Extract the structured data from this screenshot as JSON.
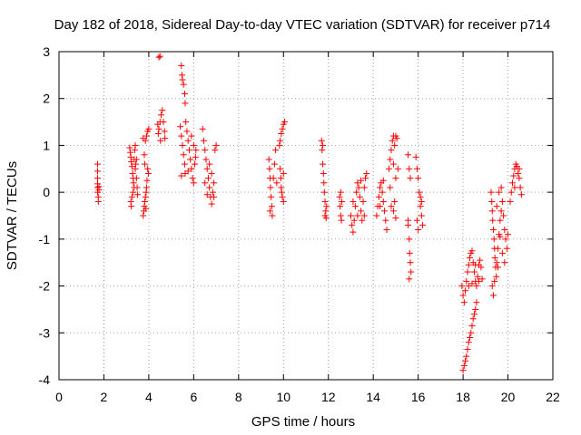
{
  "chart_data": {
    "type": "scatter",
    "title": "Day 182 of 2018, Sidereal Day-to-day VTEC variation (SDTVAR) for receiver p714",
    "xlabel": "GPS time / hours",
    "ylabel": "SDTVAR / TECUs",
    "xlim": [
      0,
      22
    ],
    "ylim": [
      -4,
      3
    ],
    "xticks": [
      "0",
      "2",
      "4",
      "6",
      "8",
      "10",
      "12",
      "14",
      "16",
      "18",
      "20",
      "22"
    ],
    "yticks": [
      "-4",
      "-3",
      "-2",
      "-1",
      "0",
      "1",
      "2",
      "3"
    ],
    "grid": true,
    "marker": "+",
    "color": "#ff0000",
    "series": [
      {
        "name": "SDTVAR",
        "points": [
          [
            1.72,
            0.6
          ],
          [
            1.72,
            0.45
          ],
          [
            1.72,
            0.3
          ],
          [
            1.72,
            0.18
          ],
          [
            1.72,
            0.1
          ],
          [
            1.72,
            0.0
          ],
          [
            1.75,
            -0.1
          ],
          [
            1.75,
            -0.2
          ],
          [
            1.78,
            0.12
          ],
          [
            1.78,
            0.05
          ],
          [
            3.15,
            0.95
          ],
          [
            3.18,
            0.85
          ],
          [
            3.2,
            0.75
          ],
          [
            3.22,
            0.65
          ],
          [
            3.25,
            0.55
          ],
          [
            3.28,
            0.4
          ],
          [
            3.3,
            0.3
          ],
          [
            3.32,
            0.2
          ],
          [
            3.35,
            0.7
          ],
          [
            3.38,
            0.9
          ],
          [
            3.4,
            1.0
          ],
          [
            3.42,
            0.6
          ],
          [
            3.45,
            0.3
          ],
          [
            3.48,
            0.1
          ],
          [
            3.5,
            -0.05
          ],
          [
            3.2,
            -0.2
          ],
          [
            3.22,
            -0.3
          ],
          [
            3.25,
            -0.1
          ],
          [
            3.3,
            0.0
          ],
          [
            3.35,
            0.1
          ],
          [
            3.4,
            0.5
          ],
          [
            3.45,
            0.7
          ],
          [
            3.75,
            -0.5
          ],
          [
            3.78,
            -0.4
          ],
          [
            3.8,
            -0.3
          ],
          [
            3.82,
            -0.2
          ],
          [
            3.85,
            -0.1
          ],
          [
            3.88,
            0.0
          ],
          [
            3.9,
            0.1
          ],
          [
            3.92,
            0.25
          ],
          [
            3.95,
            0.5
          ],
          [
            3.98,
            0.4
          ],
          [
            3.8,
            0.8
          ],
          [
            3.85,
            1.1
          ],
          [
            3.9,
            1.2
          ],
          [
            3.95,
            1.3
          ],
          [
            4.0,
            1.35
          ],
          [
            3.75,
            1.15
          ],
          [
            3.82,
            0.6
          ],
          [
            3.87,
            -0.35
          ],
          [
            4.45,
            2.88
          ],
          [
            4.5,
            2.9
          ],
          [
            4.42,
            1.25
          ],
          [
            4.45,
            1.35
          ],
          [
            4.5,
            1.5
          ],
          [
            4.55,
            1.65
          ],
          [
            4.6,
            1.75
          ],
          [
            4.65,
            1.5
          ],
          [
            4.7,
            1.3
          ],
          [
            4.72,
            1.15
          ],
          [
            4.4,
            1.45
          ],
          [
            4.52,
            1.1
          ],
          [
            5.45,
            2.7
          ],
          [
            5.48,
            2.5
          ],
          [
            5.5,
            2.4
          ],
          [
            5.55,
            2.3
          ],
          [
            5.6,
            2.1
          ],
          [
            5.62,
            1.9
          ],
          [
            5.4,
            1.4
          ],
          [
            5.45,
            1.2
          ],
          [
            5.5,
            1.0
          ],
          [
            5.55,
            0.8
          ],
          [
            5.6,
            0.6
          ],
          [
            5.62,
            0.4
          ],
          [
            5.65,
            1.5
          ],
          [
            5.7,
            1.3
          ],
          [
            5.75,
            1.1
          ],
          [
            5.8,
            0.9
          ],
          [
            5.85,
            0.7
          ],
          [
            5.9,
            0.5
          ],
          [
            5.95,
            0.3
          ],
          [
            6.0,
            0.2
          ],
          [
            6.05,
            0.6
          ],
          [
            6.1,
            0.9
          ],
          [
            5.45,
            0.35
          ],
          [
            5.9,
            1.2
          ],
          [
            6.0,
            1.0
          ],
          [
            5.75,
            0.45
          ],
          [
            6.08,
            0.75
          ],
          [
            6.4,
            1.35
          ],
          [
            6.45,
            1.1
          ],
          [
            6.5,
            0.9
          ],
          [
            6.55,
            0.7
          ],
          [
            6.6,
            0.5
          ],
          [
            6.65,
            0.3
          ],
          [
            6.7,
            0.1
          ],
          [
            6.75,
            -0.1
          ],
          [
            6.8,
            -0.25
          ],
          [
            6.85,
            0.0
          ],
          [
            6.9,
            0.2
          ],
          [
            6.95,
            0.9
          ],
          [
            7.0,
            1.0
          ],
          [
            6.5,
            0.2
          ],
          [
            6.6,
            -0.05
          ],
          [
            6.7,
            0.6
          ],
          [
            6.8,
            0.4
          ],
          [
            6.9,
            -0.1
          ],
          [
            9.35,
            0.7
          ],
          [
            9.38,
            0.5
          ],
          [
            9.4,
            0.3
          ],
          [
            9.42,
            0.1
          ],
          [
            9.45,
            -0.1
          ],
          [
            9.48,
            -0.3
          ],
          [
            9.5,
            -0.5
          ],
          [
            9.55,
            0.3
          ],
          [
            9.6,
            0.6
          ],
          [
            9.65,
            0.9
          ],
          [
            9.7,
            0.2
          ],
          [
            9.4,
            -0.4
          ],
          [
            9.85,
            0.5
          ],
          [
            9.88,
            0.3
          ],
          [
            9.9,
            0.1
          ],
          [
            9.95,
            -0.1
          ],
          [
            10.0,
            -0.2
          ],
          [
            9.92,
            0.0
          ],
          [
            9.85,
            1.1
          ],
          [
            9.9,
            1.25
          ],
          [
            9.95,
            1.35
          ],
          [
            10.0,
            1.45
          ],
          [
            10.05,
            1.5
          ],
          [
            9.82,
            1.0
          ],
          [
            10.0,
            0.4
          ],
          [
            11.7,
            1.1
          ],
          [
            11.72,
            0.9
          ],
          [
            11.75,
            0.6
          ],
          [
            11.78,
            0.4
          ],
          [
            11.8,
            0.2
          ],
          [
            11.82,
            0.0
          ],
          [
            11.85,
            -0.2
          ],
          [
            11.88,
            -0.4
          ],
          [
            11.9,
            -0.55
          ],
          [
            11.92,
            -0.3
          ],
          [
            11.75,
            1.0
          ],
          [
            11.85,
            -0.5
          ],
          [
            12.5,
            -0.1
          ],
          [
            12.52,
            -0.3
          ],
          [
            12.55,
            -0.5
          ],
          [
            12.58,
            -0.6
          ],
          [
            12.6,
            -0.2
          ],
          [
            12.55,
            0.0
          ],
          [
            13.0,
            -0.5
          ],
          [
            13.05,
            -0.7
          ],
          [
            13.1,
            -0.85
          ],
          [
            13.15,
            -0.6
          ],
          [
            13.2,
            -0.3
          ],
          [
            13.25,
            0.0
          ],
          [
            13.3,
            0.2
          ],
          [
            13.35,
            0.1
          ],
          [
            13.4,
            -0.1
          ],
          [
            13.45,
            -0.4
          ],
          [
            13.5,
            -0.6
          ],
          [
            13.55,
            -0.2
          ],
          [
            13.6,
            0.1
          ],
          [
            13.65,
            0.3
          ],
          [
            13.7,
            0.4
          ],
          [
            13.3,
            -0.5
          ],
          [
            13.45,
            0.25
          ],
          [
            13.6,
            -0.5
          ],
          [
            13.1,
            -0.2
          ],
          [
            14.15,
            -0.5
          ],
          [
            14.2,
            -0.3
          ],
          [
            14.25,
            -0.1
          ],
          [
            14.3,
            0.1
          ],
          [
            14.35,
            0.2
          ],
          [
            14.4,
            0.0
          ],
          [
            14.45,
            -0.2
          ],
          [
            14.5,
            -0.4
          ],
          [
            14.55,
            -0.6
          ],
          [
            14.6,
            -0.8
          ],
          [
            14.3,
            -0.3
          ],
          [
            14.45,
            0.25
          ],
          [
            14.7,
            0.5
          ],
          [
            14.75,
            0.7
          ],
          [
            14.8,
            0.9
          ],
          [
            14.85,
            1.1
          ],
          [
            14.9,
            1.2
          ],
          [
            14.95,
            1.0
          ],
          [
            15.0,
            1.2
          ],
          [
            15.05,
            1.15
          ],
          [
            15.1,
            0.5
          ],
          [
            14.9,
            0.6
          ],
          [
            15.0,
            0.3
          ],
          [
            14.9,
            -0.4
          ],
          [
            14.95,
            -0.2
          ],
          [
            15.0,
            -0.55
          ],
          [
            14.8,
            -0.3
          ],
          [
            14.75,
            0.1
          ],
          [
            15.55,
            -0.7
          ],
          [
            15.6,
            -1.0
          ],
          [
            15.62,
            -1.3
          ],
          [
            15.65,
            -1.5
          ],
          [
            15.68,
            -1.7
          ],
          [
            15.6,
            -1.85
          ],
          [
            15.55,
            0.8
          ],
          [
            15.6,
            0.5
          ],
          [
            15.65,
            0.3
          ],
          [
            15.55,
            -0.6
          ],
          [
            15.9,
            0.75
          ],
          [
            15.95,
            0.5
          ],
          [
            16.0,
            0.3
          ],
          [
            16.05,
            0.0
          ],
          [
            16.1,
            -0.3
          ],
          [
            16.15,
            -0.5
          ],
          [
            16.2,
            -0.7
          ],
          [
            16.1,
            -0.1
          ],
          [
            16.0,
            -0.8
          ],
          [
            15.95,
            -0.6
          ],
          [
            16.15,
            -0.2
          ],
          [
            17.95,
            -2.0
          ],
          [
            18.0,
            -2.2
          ],
          [
            18.05,
            -2.35
          ],
          [
            18.1,
            -2.1
          ],
          [
            18.15,
            -1.9
          ],
          [
            18.2,
            -1.7
          ],
          [
            18.25,
            -1.55
          ],
          [
            18.3,
            -1.4
          ],
          [
            18.35,
            -1.3
          ],
          [
            18.4,
            -1.25
          ],
          [
            18.45,
            -1.5
          ],
          [
            18.5,
            -1.7
          ],
          [
            18.55,
            -1.9
          ],
          [
            18.6,
            -2.0
          ],
          [
            18.65,
            -1.8
          ],
          [
            18.7,
            -1.55
          ],
          [
            18.75,
            -1.45
          ],
          [
            18.8,
            -1.6
          ],
          [
            18.85,
            -1.85
          ],
          [
            18.25,
            -2.0
          ],
          [
            18.4,
            -1.95
          ],
          [
            18.55,
            -1.55
          ],
          [
            18.7,
            -1.9
          ],
          [
            18.0,
            -3.8
          ],
          [
            18.05,
            -3.7
          ],
          [
            18.1,
            -3.6
          ],
          [
            18.15,
            -3.5
          ],
          [
            18.2,
            -3.35
          ],
          [
            18.25,
            -3.2
          ],
          [
            18.3,
            -3.1
          ],
          [
            18.35,
            -3.0
          ],
          [
            18.4,
            -2.85
          ],
          [
            18.45,
            -2.7
          ],
          [
            18.5,
            -2.6
          ],
          [
            18.55,
            -2.5
          ],
          [
            18.6,
            -2.35
          ],
          [
            19.25,
            0.0
          ],
          [
            19.28,
            -0.2
          ],
          [
            19.3,
            -0.4
          ],
          [
            19.32,
            -0.6
          ],
          [
            19.35,
            -0.8
          ],
          [
            19.38,
            -1.0
          ],
          [
            19.4,
            -1.2
          ],
          [
            19.42,
            -1.4
          ],
          [
            19.45,
            -1.6
          ],
          [
            19.48,
            -1.8
          ],
          [
            19.3,
            -2.0
          ],
          [
            19.35,
            -2.2
          ],
          [
            19.4,
            -1.9
          ],
          [
            19.5,
            -1.5
          ],
          [
            19.55,
            -1.2
          ],
          [
            19.6,
            -0.9
          ],
          [
            19.65,
            -0.6
          ],
          [
            19.7,
            -0.4
          ],
          [
            19.75,
            -0.2
          ],
          [
            19.8,
            -0.5
          ],
          [
            19.85,
            -0.8
          ],
          [
            19.9,
            -1.0
          ],
          [
            19.95,
            -1.2
          ],
          [
            20.0,
            -0.9
          ],
          [
            19.5,
            -0.3
          ],
          [
            19.6,
            0.0
          ],
          [
            19.7,
            0.1
          ],
          [
            19.75,
            -1.3
          ],
          [
            19.85,
            -1.5
          ],
          [
            19.55,
            -1.6
          ],
          [
            19.65,
            -0.95
          ],
          [
            20.1,
            -0.2
          ],
          [
            20.15,
            0.0
          ],
          [
            20.2,
            0.2
          ],
          [
            20.25,
            0.35
          ],
          [
            20.3,
            0.5
          ],
          [
            20.35,
            0.6
          ],
          [
            20.4,
            0.55
          ],
          [
            20.45,
            0.4
          ],
          [
            20.5,
            0.3
          ],
          [
            20.55,
            0.1
          ],
          [
            20.6,
            -0.05
          ],
          [
            20.3,
            0.1
          ],
          [
            20.5,
            0.5
          ]
        ]
      }
    ]
  }
}
